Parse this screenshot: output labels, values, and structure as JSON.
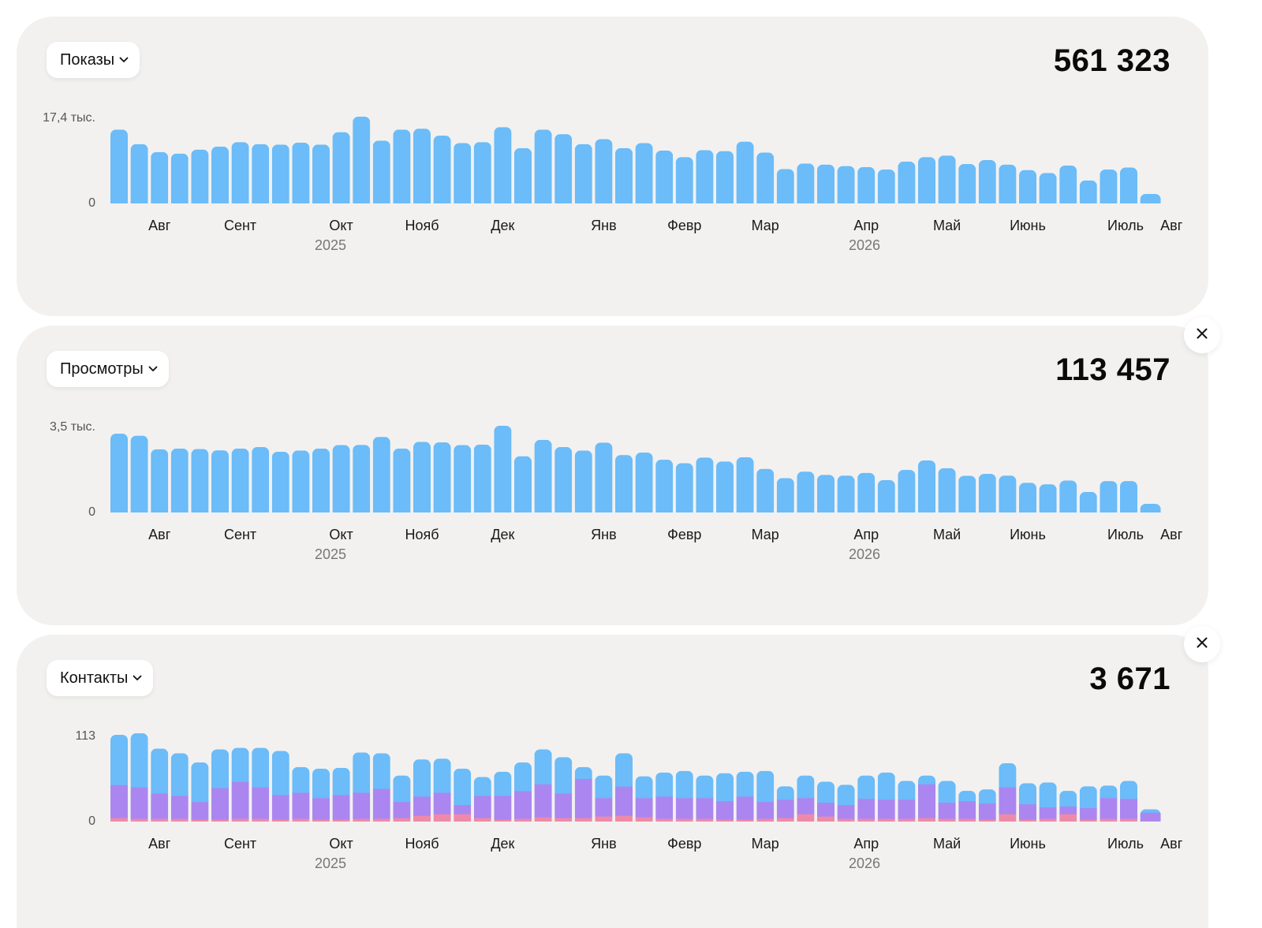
{
  "colors": {
    "views_bar": "#6bbcf8",
    "contacts_blue": "#6bbcf8",
    "contacts_purple": "#ab86f0",
    "contacts_pink": "#ee8aa8",
    "card_bg": "#f2f1f0"
  },
  "panels": [
    {
      "select_label": "Показы",
      "select_icon": "chevron-down-icon",
      "total": "561 323",
      "has_close": false,
      "close_icon": "close-icon",
      "chart_data": {
        "type": "bar",
        "y_max_label": "17,4 тыс.",
        "y_min_label": "0",
        "ylim": [
          0,
          17400
        ],
        "month_labels": [
          "Авг",
          "Сент",
          "Окт",
          "Нояб",
          "Дек",
          "Янв",
          "Февр",
          "Мар",
          "Апр",
          "Май",
          "Июнь",
          "Июль",
          "Авг"
        ],
        "year_labels": [
          "2025",
          "2026"
        ],
        "series": [
          {
            "values": [
              14800,
              11900,
              10300,
              10000,
              10800,
              11400,
              12300,
              11900,
              11800,
              12200,
              11800,
              14300,
              17400,
              12600,
              14800,
              15000,
              13600,
              12100,
              12300,
              15300,
              11100,
              14800,
              13900,
              11900,
              12900,
              11100,
              12100,
              10600,
              9300,
              10700,
              10500,
              12400,
              10200,
              6900,
              8000,
              7800,
              7500,
              7300,
              6800,
              8400,
              9300,
              9600,
              7900,
              8700,
              7800,
              6700,
              6100,
              7600,
              4600,
              6800,
              7200,
              1900
            ]
          }
        ]
      }
    },
    {
      "select_label": "Просмотры",
      "select_icon": "chevron-down-icon",
      "total": "113 457",
      "has_close": true,
      "close_icon": "close-icon",
      "chart_data": {
        "type": "bar",
        "y_max_label": "3,5 тыс.",
        "y_min_label": "0",
        "ylim": [
          0,
          3500
        ],
        "month_labels": [
          "Авг",
          "Сент",
          "Окт",
          "Нояб",
          "Дек",
          "Янв",
          "Февр",
          "Мар",
          "Апр",
          "Май",
          "Июнь",
          "Июль",
          "Авг"
        ],
        "year_labels": [
          "2025",
          "2026"
        ],
        "series": [
          {
            "values": [
              3180,
              3100,
              2550,
              2580,
              2560,
              2510,
              2580,
              2640,
              2450,
              2500,
              2580,
              2720,
              2730,
              3050,
              2580,
              2850,
              2830,
              2720,
              2740,
              3500,
              2270,
              2930,
              2640,
              2500,
              2820,
              2320,
              2420,
              2130,
              1990,
              2220,
              2060,
              2230,
              1760,
              1390,
              1650,
              1520,
              1490,
              1600,
              1310,
              1720,
              2100,
              1790,
              1480,
              1560,
              1490,
              1200,
              1140,
              1290,
              830,
              1270,
              1270,
              350
            ]
          }
        ]
      }
    },
    {
      "select_label": "Контакты",
      "select_icon": "chevron-down-icon",
      "total": "3 671",
      "has_close": true,
      "close_icon": "close-icon",
      "chart_data": {
        "type": "bar",
        "stacked": true,
        "y_max_label": "113",
        "y_min_label": "0",
        "ylim": [
          0,
          113
        ],
        "month_labels": [
          "Авг",
          "Сент",
          "Окт",
          "Нояб",
          "Дек",
          "Янв",
          "Февр",
          "Мар",
          "Апр",
          "Май",
          "Июнь",
          "Июль",
          "Авг"
        ],
        "year_labels": [
          "2025",
          "2026"
        ],
        "series": [
          {
            "values": [
              5,
              4,
              4,
              4,
              3,
              3,
              4,
              4,
              3,
              4,
              3,
              3,
              4,
              4,
              5,
              8,
              10,
              10,
              5,
              3,
              4,
              6,
              5,
              5,
              7,
              8,
              6,
              4,
              4,
              4,
              3,
              3,
              4,
              5,
              10,
              7,
              4,
              4,
              4,
              4,
              5,
              4,
              4,
              3,
              10,
              3,
              4,
              10,
              3,
              4,
              4,
              1
            ]
          },
          {
            "values": [
              43,
              41,
              33,
              30,
              23,
              41,
              48,
              41,
              32,
              34,
              28,
              32,
              34,
              39,
              21,
              25,
              28,
              12,
              29,
              31,
              36,
              43,
              32,
              51,
              24,
              38,
              25,
              29,
              27,
              27,
              24,
              30,
              22,
              24,
              21,
              18,
              18,
              26,
              25,
              25,
              44,
              21,
              23,
              21,
              35,
              20,
              15,
              10,
              15,
              27,
              26,
              11
            ]
          },
          {
            "values": [
              65,
              70,
              58,
              55,
              51,
              50,
              44,
              51,
              57,
              33,
              38,
              35,
              52,
              46,
              34,
              48,
              44,
              47,
              24,
              31,
              37,
              45,
              47,
              15,
              29,
              43,
              28,
              31,
              35,
              29,
              36,
              32,
              40,
              17,
              29,
              27,
              26,
              30,
              35,
              24,
              11,
              28,
              13,
              18,
              31,
              27,
              32,
              20,
              28,
              16,
              23,
              4
            ]
          }
        ]
      }
    }
  ]
}
